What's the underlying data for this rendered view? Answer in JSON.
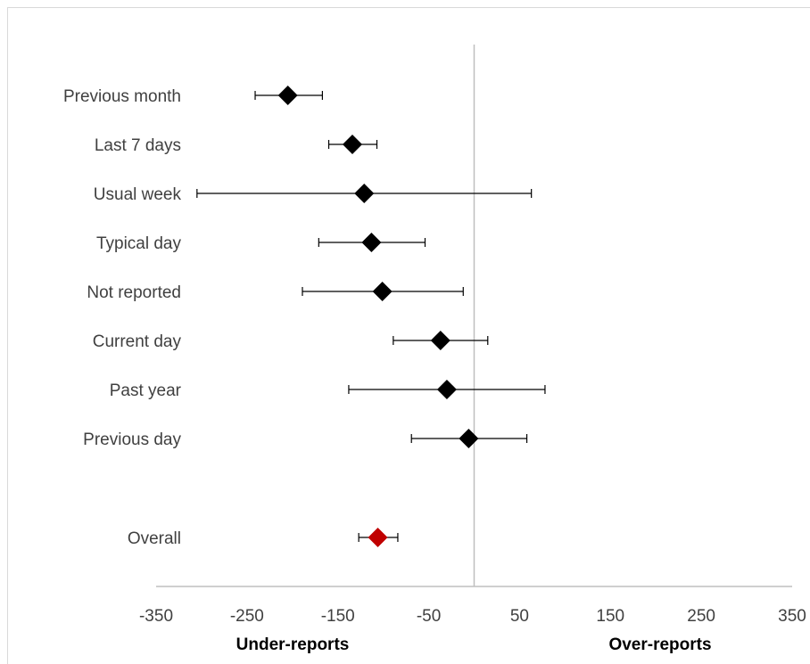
{
  "chart_data": {
    "type": "forest",
    "title": "",
    "xlabel": "",
    "ylabel": "",
    "xlim": [
      -350,
      350
    ],
    "x_ticks": [
      -350,
      -250,
      -150,
      -50,
      50,
      150,
      250,
      350
    ],
    "x_tick_labels": [
      "-350",
      "-250",
      "-150",
      "-50",
      "50",
      "150",
      "250",
      "350"
    ],
    "reference_line_x": 0,
    "direction_labels": {
      "left": "Under-reports",
      "right": "Over-reports"
    },
    "grid": false,
    "rows": [
      {
        "label": "Previous month",
        "estimate": -205,
        "lower": -241,
        "upper": -167,
        "color": "#000000"
      },
      {
        "label": "Last 7 days",
        "estimate": -134,
        "lower": -160,
        "upper": -107,
        "color": "#000000"
      },
      {
        "label": "Usual week",
        "estimate": -121,
        "lower": -305,
        "upper": 63,
        "color": "#000000"
      },
      {
        "label": "Typical day",
        "estimate": -113,
        "lower": -171,
        "upper": -54,
        "color": "#000000"
      },
      {
        "label": "Not reported",
        "estimate": -101,
        "lower": -189,
        "upper": -12,
        "color": "#000000"
      },
      {
        "label": "Current day",
        "estimate": -37,
        "lower": -89,
        "upper": 15,
        "color": "#000000"
      },
      {
        "label": "Past year",
        "estimate": -30,
        "lower": -138,
        "upper": 78,
        "color": "#000000"
      },
      {
        "label": "Previous day",
        "estimate": -6,
        "lower": -69,
        "upper": 58,
        "color": "#000000"
      },
      {
        "label": "Overall",
        "estimate": -106,
        "lower": -127,
        "upper": -84,
        "color": "#c00000"
      }
    ]
  }
}
